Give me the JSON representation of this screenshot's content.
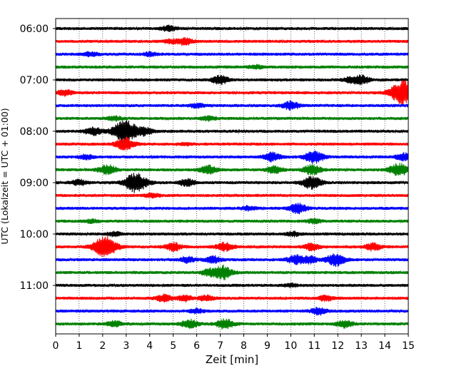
{
  "chart_data": {
    "type": "line",
    "title": "",
    "xlabel": "Zeit  [min]",
    "ylabel": "UTC (Lokalzeit = UTC + 01:00)",
    "xlim": [
      0,
      15
    ],
    "x_ticks": [
      "0",
      "1",
      "2",
      "3",
      "4",
      "5",
      "6",
      "7",
      "8",
      "9",
      "10",
      "11",
      "12",
      "13",
      "14",
      "15"
    ],
    "y_ticks": [
      {
        "label": "06:00",
        "row": 0
      },
      {
        "label": "07:00",
        "row": 4
      },
      {
        "label": "08:00",
        "row": 8
      },
      {
        "label": "09:00",
        "row": 12
      },
      {
        "label": "10:00",
        "row": 16
      },
      {
        "label": "11:00",
        "row": 20
      }
    ],
    "grid": "vertical-dotted",
    "row_minutes": 15,
    "row_colors": [
      "#000000",
      "#ff0000",
      "#0000ff",
      "#008000"
    ],
    "rows": [
      {
        "events": [
          [
            4.8,
            0.35
          ]
        ]
      },
      {
        "events": [
          [
            5.5,
            0.5
          ],
          [
            4.9,
            0.25
          ]
        ]
      },
      {
        "events": [
          [
            1.5,
            0.3
          ],
          [
            4.0,
            0.25
          ]
        ]
      },
      {
        "events": [
          [
            8.5,
            0.25
          ]
        ]
      },
      {
        "events": [
          [
            7.0,
            0.6
          ],
          [
            13.0,
            0.6
          ],
          [
            12.5,
            0.3
          ]
        ]
      },
      {
        "events": [
          [
            0.4,
            0.4
          ],
          [
            14.8,
            1.8
          ]
        ]
      },
      {
        "events": [
          [
            10.0,
            0.6
          ],
          [
            6.0,
            0.3
          ]
        ]
      },
      {
        "events": [
          [
            2.5,
            0.3
          ],
          [
            6.5,
            0.3
          ]
        ]
      },
      {
        "events": [
          [
            1.6,
            0.6
          ],
          [
            2.95,
            1.6
          ],
          [
            3.8,
            0.5
          ]
        ]
      },
      {
        "events": [
          [
            2.95,
            0.9
          ],
          [
            5.5,
            0.2
          ]
        ]
      },
      {
        "events": [
          [
            9.2,
            0.6
          ],
          [
            11.0,
            0.9
          ],
          [
            14.8,
            0.5
          ],
          [
            1.3,
            0.3
          ]
        ]
      },
      {
        "events": [
          [
            2.2,
            0.7
          ],
          [
            6.5,
            0.6
          ],
          [
            9.3,
            0.5
          ],
          [
            10.9,
            0.7
          ],
          [
            14.6,
            0.9
          ]
        ]
      },
      {
        "events": [
          [
            3.4,
            1.4
          ],
          [
            5.6,
            0.5
          ],
          [
            10.9,
            0.9
          ],
          [
            1.0,
            0.4
          ]
        ]
      },
      {
        "events": [
          [
            4.1,
            0.3
          ]
        ]
      },
      {
        "events": [
          [
            10.3,
            0.7
          ],
          [
            8.2,
            0.3
          ]
        ]
      },
      {
        "events": [
          [
            1.5,
            0.25
          ],
          [
            11.0,
            0.3
          ]
        ]
      },
      {
        "events": [
          [
            2.5,
            0.3
          ],
          [
            10.1,
            0.3
          ]
        ]
      },
      {
        "events": [
          [
            2.1,
            1.5
          ],
          [
            5.0,
            0.6
          ],
          [
            7.2,
            0.6
          ],
          [
            10.9,
            0.5
          ],
          [
            13.5,
            0.5
          ]
        ]
      },
      {
        "events": [
          [
            6.7,
            0.5
          ],
          [
            10.2,
            0.6
          ],
          [
            11.9,
            0.9
          ],
          [
            5.6,
            0.4
          ],
          [
            10.8,
            0.5
          ]
        ]
      },
      {
        "events": [
          [
            7.1,
            1.0
          ],
          [
            6.5,
            0.4
          ]
        ]
      },
      {
        "events": [
          [
            10.0,
            0.2
          ]
        ]
      },
      {
        "events": [
          [
            4.6,
            0.5
          ],
          [
            5.5,
            0.4
          ],
          [
            6.4,
            0.4
          ],
          [
            11.5,
            0.4
          ]
        ]
      },
      {
        "events": [
          [
            11.2,
            0.5
          ],
          [
            6.0,
            0.3
          ]
        ]
      },
      {
        "events": [
          [
            5.7,
            0.6
          ],
          [
            7.2,
            0.7
          ],
          [
            12.3,
            0.5
          ],
          [
            2.5,
            0.4
          ]
        ]
      }
    ]
  }
}
